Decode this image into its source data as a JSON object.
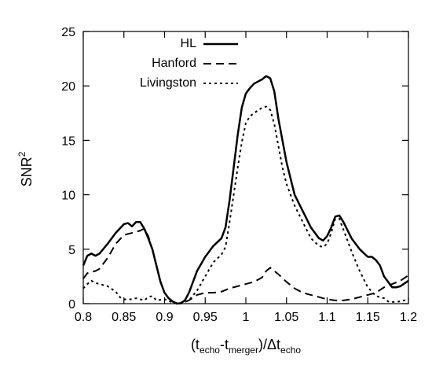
{
  "chart_data": {
    "type": "line",
    "title": "",
    "xlabel": "(t_echo-t_merger)/Δt_echo",
    "xlabel_parts": {
      "open": "(t",
      "sub1": "echo",
      "dash": "-t",
      "sub2": "merger",
      "mid": ")/Δt",
      "sub3": "echo"
    },
    "ylabel": "SNR²",
    "ylabel_parts": {
      "base": "SNR",
      "sup": "2"
    },
    "xlim": [
      0.8,
      1.2
    ],
    "ylim": [
      0,
      25
    ],
    "xticks": [
      "0.8",
      "0.85",
      "0.9",
      "0.95",
      "1",
      "1.05",
      "1.1",
      "1.15",
      "1.2"
    ],
    "yticks": [
      "0",
      "5",
      "10",
      "15",
      "20",
      "25"
    ],
    "grid": false,
    "legend_position": "top-left",
    "series": [
      {
        "name": "HL",
        "style": "solid",
        "points": [
          [
            0.8,
            3.5
          ],
          [
            0.805,
            4.4
          ],
          [
            0.81,
            4.6
          ],
          [
            0.815,
            4.4
          ],
          [
            0.82,
            4.6
          ],
          [
            0.83,
            5.5
          ],
          [
            0.84,
            6.5
          ],
          [
            0.85,
            7.3
          ],
          [
            0.855,
            7.4
          ],
          [
            0.86,
            7.1
          ],
          [
            0.865,
            7.5
          ],
          [
            0.87,
            7.5
          ],
          [
            0.875,
            6.9
          ],
          [
            0.88,
            6.0
          ],
          [
            0.885,
            5.0
          ],
          [
            0.89,
            3.5
          ],
          [
            0.895,
            2.0
          ],
          [
            0.9,
            1.0
          ],
          [
            0.905,
            0.5
          ],
          [
            0.91,
            0.2
          ],
          [
            0.915,
            0.0
          ],
          [
            0.92,
            0.05
          ],
          [
            0.925,
            0.3
          ],
          [
            0.93,
            1.0
          ],
          [
            0.935,
            2.0
          ],
          [
            0.94,
            3.0
          ],
          [
            0.95,
            4.3
          ],
          [
            0.96,
            5.3
          ],
          [
            0.97,
            6.0
          ],
          [
            0.975,
            7.0
          ],
          [
            0.98,
            9.5
          ],
          [
            0.985,
            12.5
          ],
          [
            0.99,
            15.5
          ],
          [
            0.995,
            18.0
          ],
          [
            1.0,
            19.3
          ],
          [
            1.005,
            19.8
          ],
          [
            1.01,
            20.2
          ],
          [
            1.02,
            20.6
          ],
          [
            1.025,
            20.9
          ],
          [
            1.03,
            20.7
          ],
          [
            1.035,
            19.5
          ],
          [
            1.04,
            17.0
          ],
          [
            1.045,
            15.0
          ],
          [
            1.05,
            13.0
          ],
          [
            1.055,
            11.5
          ],
          [
            1.06,
            10.0
          ],
          [
            1.07,
            8.5
          ],
          [
            1.08,
            7.0
          ],
          [
            1.09,
            6.0
          ],
          [
            1.095,
            5.8
          ],
          [
            1.1,
            6.2
          ],
          [
            1.105,
            7.0
          ],
          [
            1.11,
            8.0
          ],
          [
            1.115,
            8.1
          ],
          [
            1.12,
            7.5
          ],
          [
            1.13,
            6.0
          ],
          [
            1.14,
            5.0
          ],
          [
            1.15,
            4.3
          ],
          [
            1.155,
            4.3
          ],
          [
            1.16,
            4.0
          ],
          [
            1.165,
            3.5
          ],
          [
            1.17,
            2.5
          ],
          [
            1.175,
            2.0
          ],
          [
            1.18,
            1.5
          ],
          [
            1.185,
            1.5
          ],
          [
            1.19,
            1.6
          ],
          [
            1.2,
            2.1
          ]
        ]
      },
      {
        "name": "Hanford",
        "style": "dashed",
        "points": [
          [
            0.8,
            2.3
          ],
          [
            0.805,
            2.8
          ],
          [
            0.81,
            2.9
          ],
          [
            0.815,
            3.0
          ],
          [
            0.82,
            3.2
          ],
          [
            0.83,
            4.2
          ],
          [
            0.84,
            5.5
          ],
          [
            0.85,
            6.3
          ],
          [
            0.86,
            6.5
          ],
          [
            0.87,
            6.7
          ],
          [
            0.875,
            6.9
          ],
          [
            0.88,
            6.2
          ],
          [
            0.885,
            5.0
          ],
          [
            0.89,
            3.5
          ],
          [
            0.895,
            2.0
          ],
          [
            0.9,
            1.0
          ],
          [
            0.905,
            0.5
          ],
          [
            0.91,
            0.2
          ],
          [
            0.915,
            0.0
          ],
          [
            0.92,
            0.0
          ],
          [
            0.93,
            0.3
          ],
          [
            0.94,
            0.8
          ],
          [
            0.95,
            1.0
          ],
          [
            0.96,
            1.0
          ],
          [
            0.97,
            1.1
          ],
          [
            0.98,
            1.4
          ],
          [
            0.99,
            1.6
          ],
          [
            1.0,
            1.8
          ],
          [
            1.01,
            2.0
          ],
          [
            1.02,
            2.4
          ],
          [
            1.025,
            3.0
          ],
          [
            1.03,
            3.3
          ],
          [
            1.035,
            3.0
          ],
          [
            1.04,
            2.7
          ],
          [
            1.05,
            2.0
          ],
          [
            1.06,
            1.4
          ],
          [
            1.07,
            1.0
          ],
          [
            1.08,
            0.8
          ],
          [
            1.09,
            0.6
          ],
          [
            1.1,
            0.4
          ],
          [
            1.11,
            0.3
          ],
          [
            1.12,
            0.3
          ],
          [
            1.13,
            0.4
          ],
          [
            1.14,
            0.6
          ],
          [
            1.15,
            0.8
          ],
          [
            1.16,
            1.0
          ],
          [
            1.17,
            1.5
          ],
          [
            1.18,
            1.8
          ],
          [
            1.19,
            2.1
          ],
          [
            1.2,
            2.6
          ]
        ]
      },
      {
        "name": "Livingston",
        "style": "dotted",
        "points": [
          [
            0.8,
            1.4
          ],
          [
            0.805,
            1.8
          ],
          [
            0.81,
            2.1
          ],
          [
            0.815,
            1.9
          ],
          [
            0.82,
            1.8
          ],
          [
            0.83,
            1.6
          ],
          [
            0.84,
            1.1
          ],
          [
            0.845,
            0.6
          ],
          [
            0.85,
            0.4
          ],
          [
            0.86,
            0.4
          ],
          [
            0.865,
            0.5
          ],
          [
            0.87,
            0.4
          ],
          [
            0.875,
            0.3
          ],
          [
            0.88,
            0.6
          ],
          [
            0.885,
            0.7
          ],
          [
            0.89,
            0.3
          ],
          [
            0.9,
            0.4
          ],
          [
            0.91,
            0.1
          ],
          [
            0.92,
            0.05
          ],
          [
            0.93,
            0.3
          ],
          [
            0.94,
            1.2
          ],
          [
            0.95,
            2.5
          ],
          [
            0.96,
            3.8
          ],
          [
            0.97,
            4.5
          ],
          [
            0.975,
            5.2
          ],
          [
            0.98,
            7.5
          ],
          [
            0.985,
            10.0
          ],
          [
            0.99,
            12.5
          ],
          [
            0.995,
            14.8
          ],
          [
            1.0,
            16.6
          ],
          [
            1.005,
            17.2
          ],
          [
            1.01,
            17.5
          ],
          [
            1.02,
            18.0
          ],
          [
            1.025,
            18.1
          ],
          [
            1.03,
            17.8
          ],
          [
            1.035,
            16.5
          ],
          [
            1.04,
            14.5
          ],
          [
            1.045,
            12.5
          ],
          [
            1.05,
            11.0
          ],
          [
            1.06,
            9.0
          ],
          [
            1.07,
            7.5
          ],
          [
            1.08,
            6.0
          ],
          [
            1.09,
            5.3
          ],
          [
            1.095,
            5.2
          ],
          [
            1.1,
            5.5
          ],
          [
            1.105,
            6.5
          ],
          [
            1.11,
            7.8
          ],
          [
            1.115,
            7.8
          ],
          [
            1.12,
            6.8
          ],
          [
            1.13,
            4.8
          ],
          [
            1.14,
            3.0
          ],
          [
            1.15,
            1.5
          ],
          [
            1.16,
            0.7
          ],
          [
            1.17,
            0.5
          ],
          [
            1.175,
            0.2
          ],
          [
            1.18,
            0.15
          ],
          [
            1.19,
            0.2
          ],
          [
            1.2,
            0.4
          ]
        ]
      }
    ]
  }
}
